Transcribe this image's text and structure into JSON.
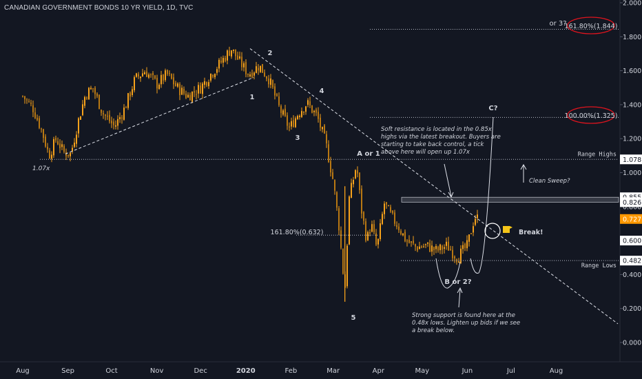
{
  "window": {
    "title": "CANADIAN GOVERNMENT BONDS 10 YR YIELD, 1D, TVC"
  },
  "colors": {
    "background": "#131722",
    "candle": "#f7a21b",
    "text": "#d1d4dc",
    "dotted": "#b8bcc8",
    "fib_circle": "#e0141e",
    "price_badge": "#ff9800"
  },
  "chart_data": {
    "type": "candlestick",
    "title": "CANADIAN GOVERNMENT BONDS 10 YR YIELD, 1D, TVC",
    "x_ticks": [
      "Aug",
      "Sep",
      "Oct",
      "Nov",
      "Dec",
      "2020",
      "Feb",
      "Mar",
      "Apr",
      "May",
      "Jun",
      "Jul",
      "Aug"
    ],
    "y_ticks": [
      "2.000",
      "1.800",
      "1.600",
      "1.400",
      "1.200",
      "1.000",
      "0.800",
      "0.600",
      "0.400",
      "0.200",
      "0.000"
    ],
    "ylim": [
      -0.08,
      2.02
    ],
    "series": [
      {
        "name": "close",
        "points": [
          [
            "2019-08-01",
            1.45
          ],
          [
            "2019-08-08",
            1.38
          ],
          [
            "2019-08-14",
            1.25
          ],
          [
            "2019-08-19",
            1.1
          ],
          [
            "2019-08-24",
            1.2
          ],
          [
            "2019-08-29",
            1.12
          ],
          [
            "2019-09-03",
            1.11
          ],
          [
            "2019-09-08",
            1.3
          ],
          [
            "2019-09-13",
            1.46
          ],
          [
            "2019-09-18",
            1.5
          ],
          [
            "2019-09-25",
            1.35
          ],
          [
            "2019-10-03",
            1.27
          ],
          [
            "2019-10-10",
            1.38
          ],
          [
            "2019-10-17",
            1.55
          ],
          [
            "2019-10-24",
            1.6
          ],
          [
            "2019-11-01",
            1.52
          ],
          [
            "2019-11-08",
            1.58
          ],
          [
            "2019-11-15",
            1.5
          ],
          [
            "2019-11-22",
            1.45
          ],
          [
            "2019-12-01",
            1.5
          ],
          [
            "2019-12-08",
            1.58
          ],
          [
            "2019-12-15",
            1.65
          ],
          [
            "2019-12-22",
            1.73
          ],
          [
            "2019-12-28",
            1.65
          ],
          [
            "2020-01-03",
            1.58
          ],
          [
            "2020-01-10",
            1.63
          ],
          [
            "2020-01-17",
            1.55
          ],
          [
            "2020-01-24",
            1.38
          ],
          [
            "2020-01-31",
            1.26
          ],
          [
            "2020-02-06",
            1.35
          ],
          [
            "2020-02-12",
            1.41
          ],
          [
            "2020-02-19",
            1.33
          ],
          [
            "2020-02-25",
            1.17
          ],
          [
            "2020-03-01",
            0.95
          ],
          [
            "2020-03-05",
            0.68
          ],
          [
            "2020-03-09",
            0.3
          ],
          [
            "2020-03-12",
            0.85
          ],
          [
            "2020-03-17",
            1.05
          ],
          [
            "2020-03-20",
            0.8
          ],
          [
            "2020-03-24",
            0.6
          ],
          [
            "2020-03-27",
            0.7
          ],
          [
            "2020-03-31",
            0.55
          ],
          [
            "2020-04-05",
            0.82
          ],
          [
            "2020-04-10",
            0.74
          ],
          [
            "2020-04-15",
            0.68
          ],
          [
            "2020-04-20",
            0.6
          ],
          [
            "2020-04-27",
            0.56
          ],
          [
            "2020-05-04",
            0.57
          ],
          [
            "2020-05-11",
            0.54
          ],
          [
            "2020-05-18",
            0.57
          ],
          [
            "2020-05-25",
            0.5
          ],
          [
            "2020-06-01",
            0.57
          ],
          [
            "2020-06-06",
            0.74
          ],
          [
            "2020-06-09",
            0.727
          ]
        ]
      }
    ],
    "price_labels": [
      "1.078",
      "0.855",
      "0.826",
      "0.727",
      "0.600",
      "0.482"
    ],
    "current_price": "0.727",
    "levels": [
      {
        "label": "Range Highs",
        "value": 1.078
      },
      {
        "label": "Range Lows",
        "value": 0.482
      }
    ],
    "zone": {
      "from": 0.826,
      "to": 0.855
    },
    "annotations": {
      "wave_2": "2",
      "wave_1": "1",
      "wave_4": "4",
      "wave_3": "3",
      "wave_5": "5",
      "a_or_1": "A or 1",
      "c_question": "C?",
      "b_or_2": "B or 2?",
      "low_label": "1.07x",
      "fib_161_low": "161.80%(0.632)",
      "or_3": "or 3?",
      "fib_161_high": "161.80%(1.844)",
      "fib_100": "100.00%(1.325)",
      "clean_sweep": "Clean Sweep?",
      "break_label": "Break!",
      "soft_resistance_note": [
        "Soft resistance is located in the 0.85x",
        "highs via the latest breakout. Buyers are",
        "starting to take back control, a tick",
        "above here will open up 1.07x"
      ],
      "strong_support_note": [
        "Strong support is found here at the",
        "0.48x lows. Lighten up bids if we see",
        "a break below."
      ]
    }
  }
}
